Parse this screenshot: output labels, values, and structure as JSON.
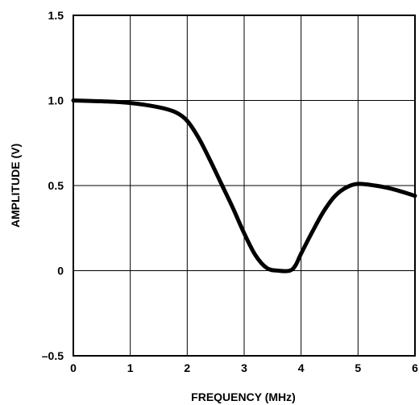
{
  "chart_data": {
    "type": "line",
    "title": "",
    "xlabel": "FREQUENCY (MHz)",
    "ylabel": "AMPLITUDE (V)",
    "xlim": [
      0,
      6
    ],
    "ylim": [
      -0.5,
      1.5
    ],
    "x_ticks": [
      0,
      1,
      2,
      3,
      4,
      5,
      6
    ],
    "y_ticks": [
      -0.5,
      0,
      0.5,
      1.0,
      1.5
    ],
    "x_tick_labels": [
      "0",
      "1",
      "2",
      "3",
      "4",
      "5",
      "6"
    ],
    "y_tick_labels": [
      "–0.5",
      "0",
      "0.5",
      "1.0",
      "1.5"
    ],
    "grid": true,
    "legend": "none",
    "line_color": "#000000",
    "series": [
      {
        "x": [
          0,
          0.5,
          1.0,
          1.5,
          1.8,
          2.0,
          2.2,
          2.4,
          2.6,
          2.8,
          3.0,
          3.2,
          3.4,
          3.6,
          3.8,
          3.9,
          4.0,
          4.2,
          4.4,
          4.6,
          4.8,
          5.0,
          5.3,
          5.6,
          6.0
        ],
        "y": [
          1.0,
          0.995,
          0.985,
          0.96,
          0.93,
          0.88,
          0.78,
          0.65,
          0.51,
          0.37,
          0.22,
          0.09,
          0.015,
          0.0,
          0.0,
          0.03,
          0.1,
          0.23,
          0.35,
          0.44,
          0.49,
          0.51,
          0.5,
          0.48,
          0.44
        ]
      }
    ]
  }
}
